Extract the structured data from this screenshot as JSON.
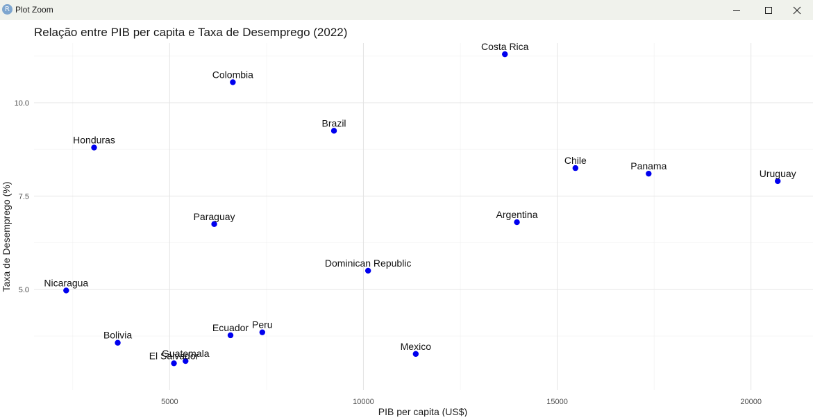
{
  "window": {
    "title": "Plot Zoom",
    "icon": "R",
    "icon_name": "r-logo-icon",
    "controls": [
      "minimize-icon",
      "maximize-icon",
      "close-icon"
    ]
  },
  "chart_data": {
    "type": "scatter",
    "title": "Relação entre PIB per capita e Taxa de Desemprego (2022)",
    "xlabel": "PIB per capita (US$)",
    "ylabel": "Taxa de Desemprego (%)",
    "xlim": [
      1500,
      21600
    ],
    "ylim": [
      2.3,
      11.6
    ],
    "x_ticks": [
      5000,
      10000,
      15000,
      20000
    ],
    "x_tick_labels": [
      "5000",
      "10000",
      "15000",
      "20000"
    ],
    "y_ticks": [
      5,
      7.5,
      10
    ],
    "y_tick_labels": [
      "5.0",
      "7.5",
      "10.0"
    ],
    "grid": true,
    "point_color": "#0000ee",
    "points": [
      {
        "label": "Costa Rica",
        "x": 13650,
        "y": 11.3
      },
      {
        "label": "Colombia",
        "x": 6630,
        "y": 10.55
      },
      {
        "label": "Brazil",
        "x": 9240,
        "y": 9.25
      },
      {
        "label": "Honduras",
        "x": 3050,
        "y": 8.8
      },
      {
        "label": "Chile",
        "x": 15470,
        "y": 8.25
      },
      {
        "label": "Panama",
        "x": 17360,
        "y": 8.1
      },
      {
        "label": "Uruguay",
        "x": 20690,
        "y": 7.9
      },
      {
        "label": "Paraguay",
        "x": 6150,
        "y": 6.75
      },
      {
        "label": "Argentina",
        "x": 13960,
        "y": 6.8
      },
      {
        "label": "Dominican Republic",
        "x": 10120,
        "y": 5.5
      },
      {
        "label": "Nicaragua",
        "x": 2330,
        "y": 4.97
      },
      {
        "label": "Peru",
        "x": 7390,
        "y": 3.85
      },
      {
        "label": "Ecuador",
        "x": 6570,
        "y": 3.77
      },
      {
        "label": "Bolivia",
        "x": 3660,
        "y": 3.57
      },
      {
        "label": "Mexico",
        "x": 11350,
        "y": 3.27
      },
      {
        "label": "Guatemala",
        "x": 5410,
        "y": 3.08
      },
      {
        "label": "El Salvador",
        "x": 5110,
        "y": 3.02
      }
    ]
  }
}
